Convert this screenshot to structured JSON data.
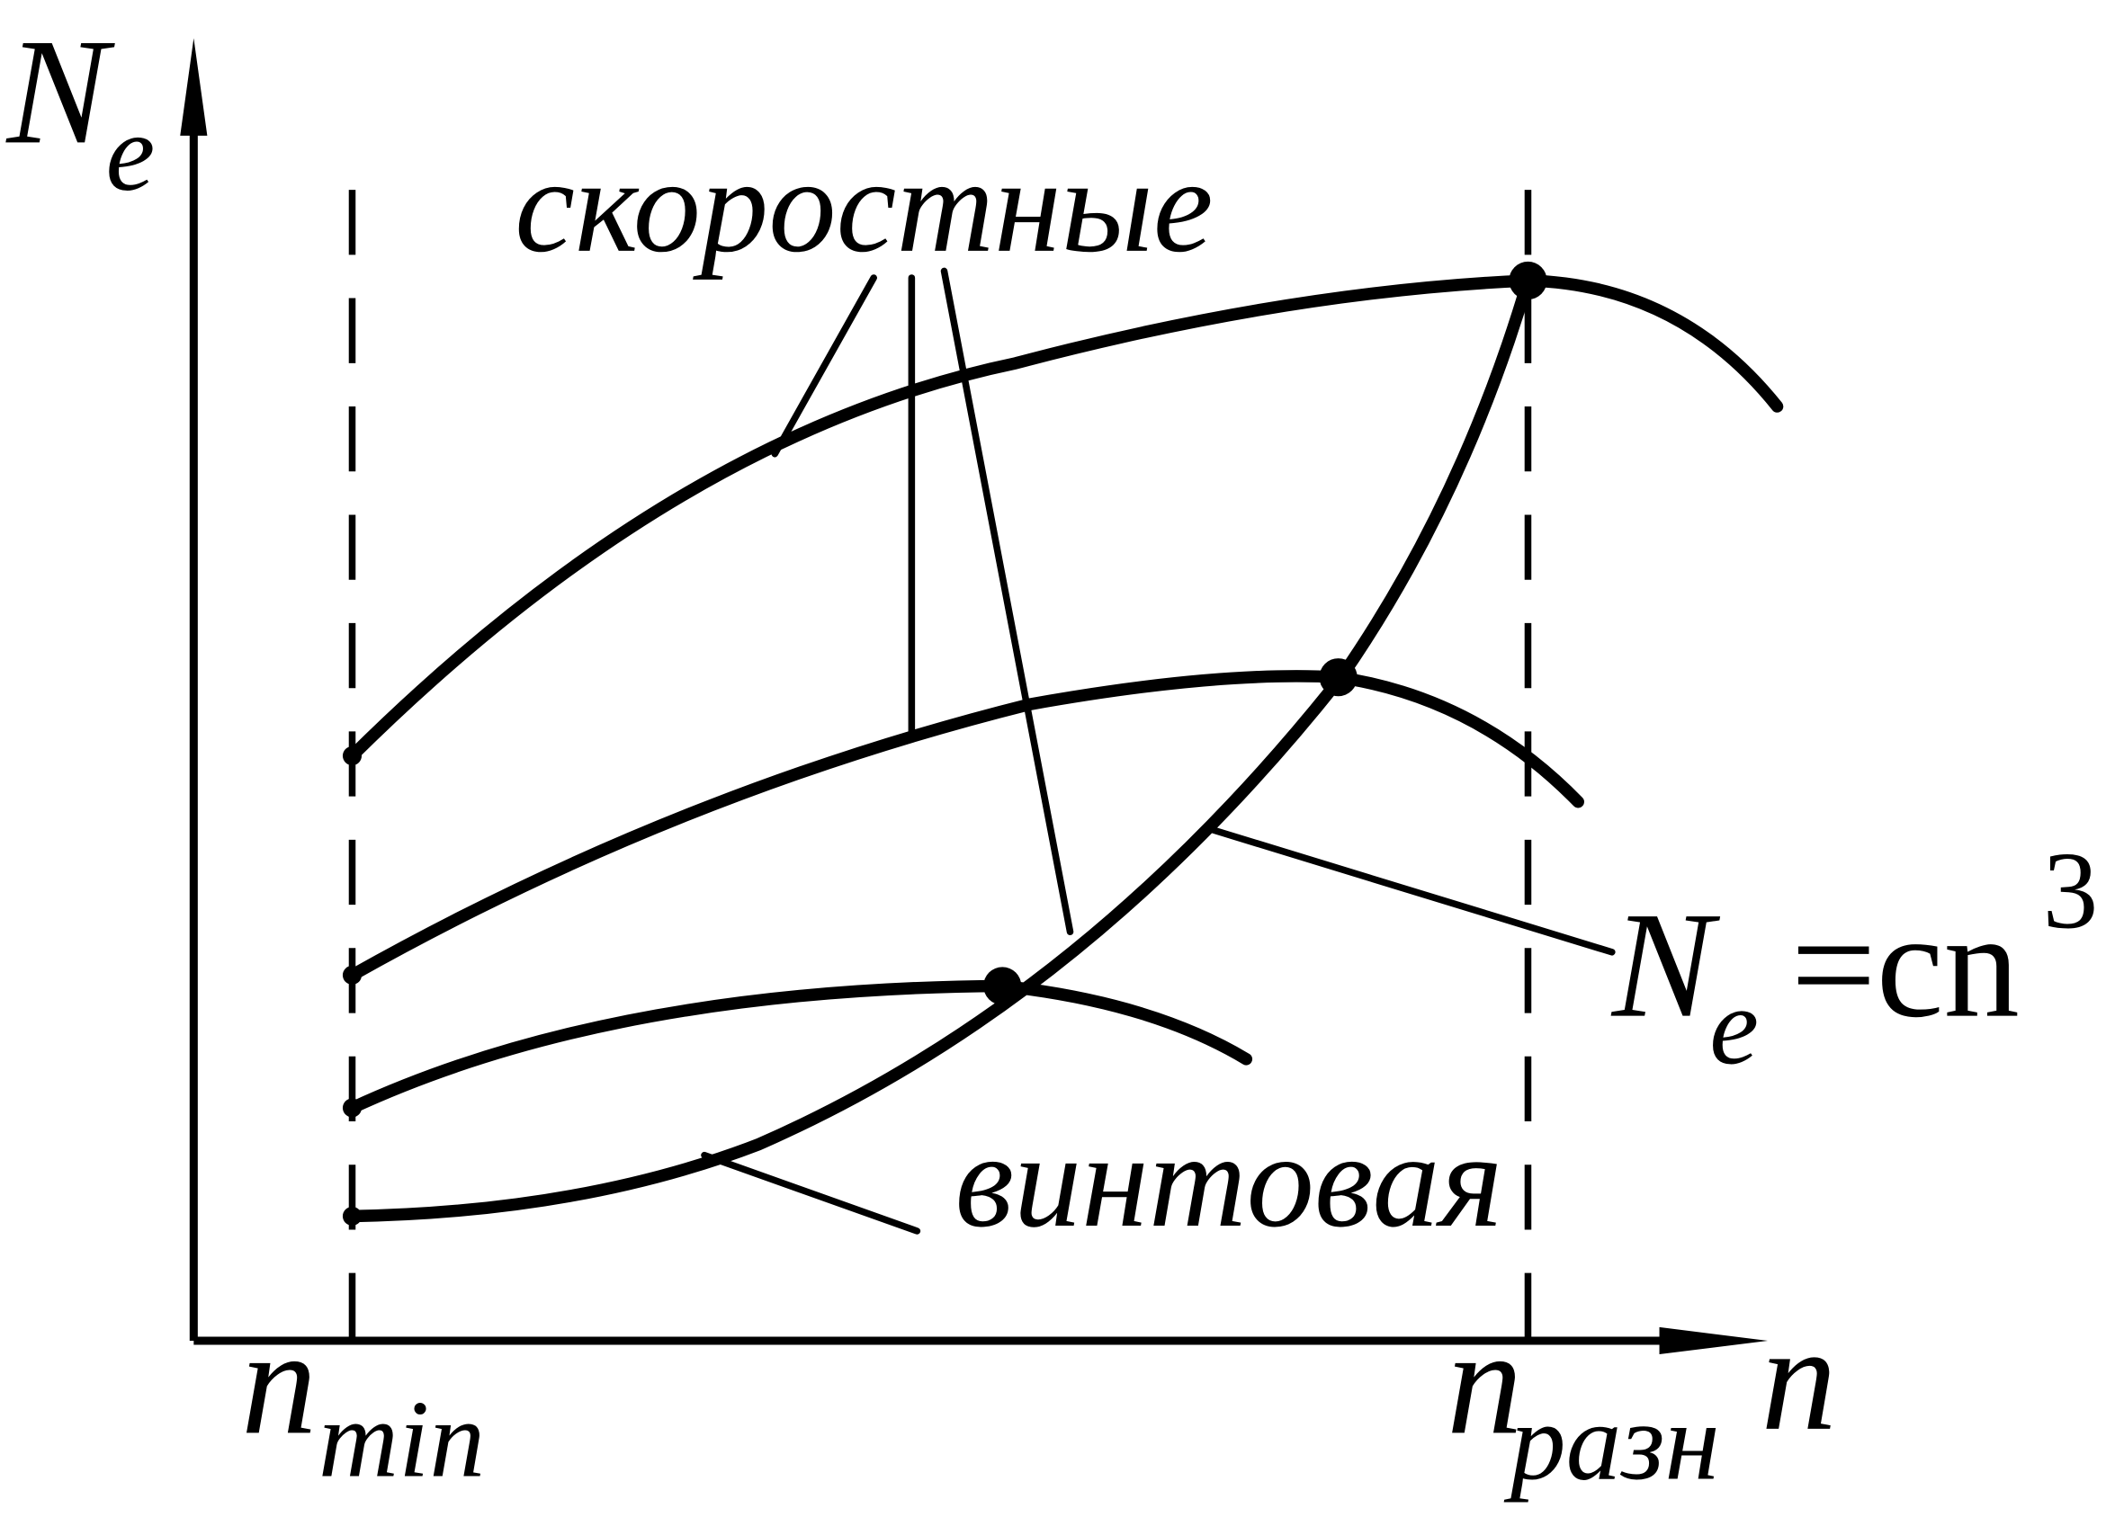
{
  "y_axis_label": {
    "main": "N",
    "subscript": "e"
  },
  "x_axis_label": "n",
  "x_marks": [
    {
      "main": "n",
      "subscript": "min"
    },
    {
      "main": "n",
      "subscript": "разн"
    }
  ],
  "labels": {
    "speed_curves": "скоростные",
    "propeller_curve": "винтовая",
    "formula": {
      "main": "N",
      "subscript": "e",
      "rest": "=cn",
      "superscript": "3"
    }
  }
}
